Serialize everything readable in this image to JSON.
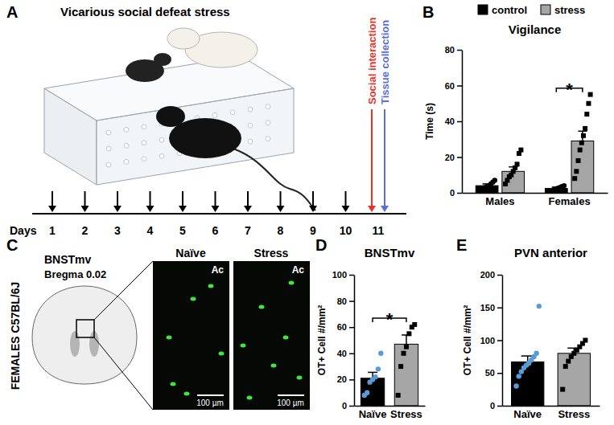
{
  "chart_data": [
    {
      "type": "bar",
      "title": "Vigilance",
      "y_label": "Time (s)",
      "categories": [
        "Males",
        "Females"
      ],
      "series": [
        {
          "name": "control",
          "color": "#000000",
          "marker": "circle",
          "values": [
            4,
            2.5
          ],
          "errors": [
            1,
            0.7
          ],
          "points": [
            [
              1,
              2,
              2.5,
              3,
              3.5,
              4,
              5,
              6,
              7
            ],
            [
              0.5,
              1,
              1.5,
              2,
              2.5,
              3,
              3.5,
              4
            ]
          ]
        },
        {
          "name": "stress",
          "color": "#a6a6a6",
          "marker": "square",
          "values": [
            12,
            29
          ],
          "errors": [
            2.5,
            5.5
          ],
          "points": [
            [
              5,
              7,
              9,
              10,
              12,
              14,
              16,
              22,
              24
            ],
            [
              8,
              12,
              18,
              24,
              28,
              32,
              36,
              44,
              50,
              55
            ]
          ]
        }
      ],
      "ylim": [
        0,
        80
      ],
      "yticks": [
        0,
        20,
        40,
        60,
        80
      ],
      "legend": "top",
      "annotations": [
        {
          "text": "*",
          "category": "Females"
        }
      ]
    },
    {
      "type": "bar",
      "title": "BNSTmv",
      "y_label": "OT+ Cell #/mm²",
      "categories": [
        "Naïve",
        "Stress"
      ],
      "values": [
        21,
        47
      ],
      "errors": [
        4.5,
        7
      ],
      "colors": [
        "#000000",
        "#a6a6a6"
      ],
      "points": [
        {
          "values": [
            8,
            10,
            18,
            20,
            22,
            28,
            40
          ],
          "color": "#5b9bd5",
          "marker": "circle"
        },
        {
          "values": [
            8,
            30,
            40,
            45,
            55,
            60,
            62
          ],
          "color": "#000000",
          "marker": "square"
        }
      ],
      "ylim": [
        0,
        100
      ],
      "yticks": [
        0,
        20,
        40,
        60,
        80,
        100
      ],
      "annotations": [
        {
          "text": "*"
        }
      ]
    },
    {
      "type": "bar",
      "title": "PVN anterior",
      "y_label": "OT+ Cell #/mm²",
      "categories": [
        "Naïve",
        "Stress"
      ],
      "values": [
        67,
        80
      ],
      "errors": [
        9,
        8
      ],
      "colors": [
        "#000000",
        "#a6a6a6"
      ],
      "points": [
        {
          "values": [
            30,
            45,
            52,
            58,
            62,
            65,
            70,
            75,
            80,
            152
          ],
          "color": "#5b9bd5",
          "marker": "circle"
        },
        {
          "values": [
            25,
            60,
            68,
            75,
            80,
            85,
            90,
            95,
            100
          ],
          "color": "#000000",
          "marker": "square"
        }
      ],
      "ylim": [
        0,
        200
      ],
      "yticks": [
        0,
        50,
        100,
        150,
        200
      ]
    }
  ],
  "figure": {
    "panel_labels": [
      "A",
      "B",
      "C",
      "D",
      "E"
    ],
    "panel_a": {
      "title": "Vicarious social defeat stress",
      "axis_label": "Days",
      "days": [
        1,
        2,
        3,
        4,
        5,
        6,
        7,
        8,
        9,
        10,
        11
      ],
      "events": [
        {
          "text": "Social interaction",
          "day": 11,
          "color": "#e8332a"
        },
        {
          "text": "Tissue collection",
          "day": 11,
          "color": "#5a6fd8"
        }
      ]
    },
    "panel_c": {
      "region": "BNSTmv",
      "bregma": "Bregma 0.02",
      "group_label": "FEMALES C57BL/6J",
      "images": [
        {
          "title": "Naïve",
          "structure": "Ac",
          "scale": "100 µm"
        },
        {
          "title": "Stress",
          "structure": "Ac",
          "scale": "100 µm"
        }
      ]
    }
  }
}
